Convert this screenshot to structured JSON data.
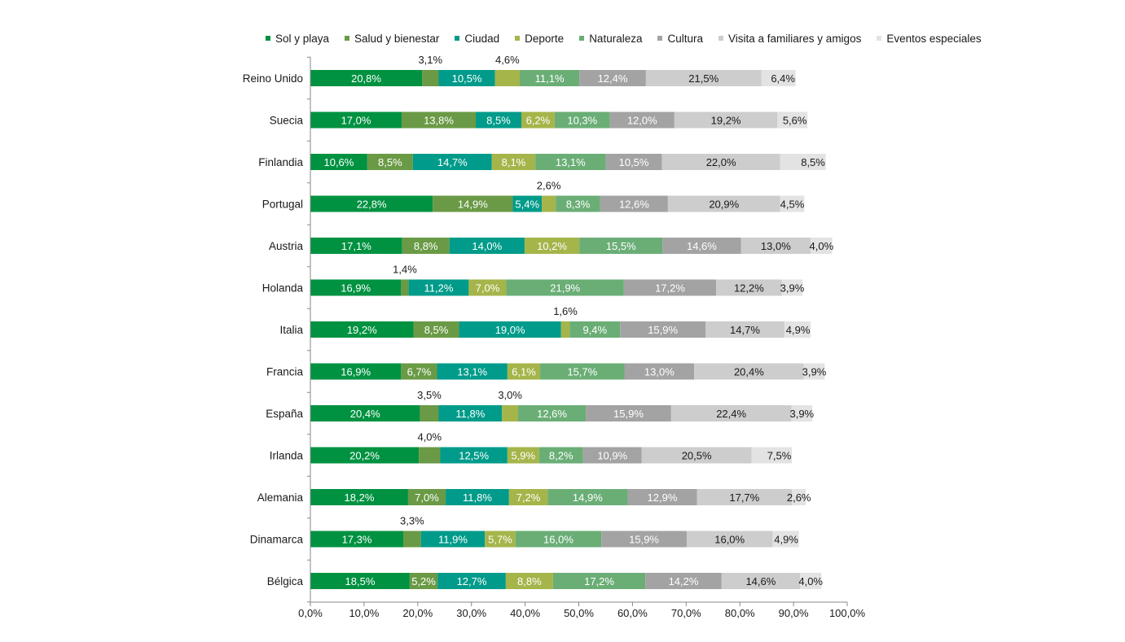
{
  "chart_data": {
    "type": "bar",
    "orientation": "horizontal",
    "stacked": true,
    "categories": [
      "Reino Unido",
      "Suecia",
      "Finlandia",
      "Portugal",
      "Austria",
      "Holanda",
      "Italia",
      "Francia",
      "España",
      "Irlanda",
      "Alemania",
      "Dinamarca",
      "Bélgica"
    ],
    "series": [
      {
        "name": "Sol y playa",
        "color": "#009241",
        "values": [
          20.8,
          17.0,
          10.6,
          22.8,
          17.1,
          16.9,
          19.2,
          16.9,
          20.4,
          20.2,
          18.2,
          17.3,
          18.5
        ]
      },
      {
        "name": "Salud y bienestar",
        "color": "#6a9a45",
        "values": [
          3.1,
          13.8,
          8.5,
          14.9,
          8.8,
          1.4,
          8.5,
          6.7,
          3.5,
          4.0,
          7.0,
          3.3,
          5.2
        ]
      },
      {
        "name": "Ciudad",
        "color": "#009b8a",
        "values": [
          10.5,
          8.5,
          14.7,
          5.4,
          14.0,
          11.2,
          19.0,
          13.1,
          11.8,
          12.5,
          11.8,
          11.9,
          12.7
        ]
      },
      {
        "name": "Deporte",
        "color": "#a5b54a",
        "values": [
          4.6,
          6.2,
          8.1,
          2.6,
          10.2,
          7.0,
          1.6,
          6.1,
          3.0,
          5.9,
          7.2,
          5.7,
          8.8
        ]
      },
      {
        "name": "Naturaleza",
        "color": "#6aae76",
        "values": [
          11.1,
          10.3,
          13.1,
          8.3,
          15.5,
          21.9,
          9.4,
          15.7,
          12.6,
          8.2,
          14.9,
          16.0,
          17.2
        ]
      },
      {
        "name": "Cultura",
        "color": "#a3a3a3",
        "values": [
          12.4,
          12.0,
          10.5,
          12.6,
          14.6,
          17.2,
          15.9,
          13.0,
          15.9,
          10.9,
          12.9,
          15.9,
          14.2
        ]
      },
      {
        "name": "Visita a familiares y amigos",
        "color": "#cdcdcd",
        "values": [
          21.5,
          19.2,
          22.0,
          20.9,
          13.0,
          12.2,
          14.7,
          20.4,
          22.4,
          20.5,
          17.7,
          16.0,
          14.6
        ]
      },
      {
        "name": "Eventos especiales",
        "color": "#e3e3e3",
        "values": [
          6.4,
          5.6,
          8.5,
          4.5,
          4.0,
          3.9,
          4.9,
          3.9,
          3.9,
          7.5,
          2.6,
          4.9,
          4.0
        ]
      }
    ],
    "xlim": [
      0,
      100
    ],
    "x_ticks": [
      "0,0%",
      "10,0%",
      "20,0%",
      "30,0%",
      "40,0%",
      "50,0%",
      "60,0%",
      "70,0%",
      "80,0%",
      "90,0%",
      "100,0%"
    ],
    "legend_position": "top",
    "grid": false,
    "xlabel": "",
    "ylabel": "",
    "title": ""
  }
}
